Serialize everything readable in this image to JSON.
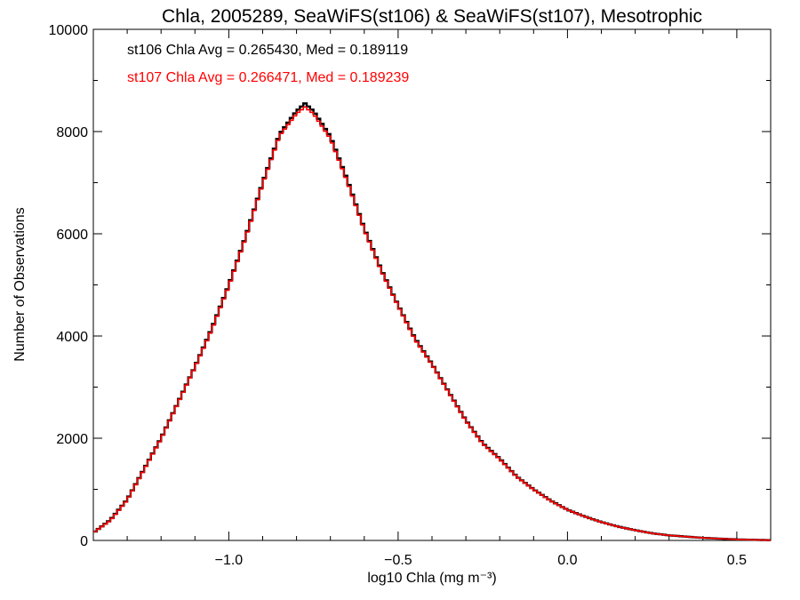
{
  "chart_data": {
    "type": "line",
    "title": "Chla, 2005289, SeaWiFS(st106) & SeaWiFS(st107), Mesotrophic",
    "xlabel": "log10 Chla (mg m⁻³)",
    "ylabel": "Number of Observations",
    "xlim": [
      -1.4,
      0.6
    ],
    "ylim": [
      0,
      10000
    ],
    "x_ticks": [
      -1.0,
      -0.5,
      0.0,
      0.5
    ],
    "x_tick_labels": [
      "−1.0",
      "−0.5",
      "0.0",
      "0.5"
    ],
    "y_ticks": [
      0,
      2000,
      4000,
      6000,
      8000,
      10000
    ],
    "y_tick_labels": [
      "0",
      "2000",
      "4000",
      "6000",
      "8000",
      "10000"
    ],
    "grid": false,
    "annotations": [
      {
        "text": "st106 Chla Avg = 0.265430, Med = 0.189119",
        "color": "#000000"
      },
      {
        "text": "st107 Chla Avg = 0.266471, Med = 0.189239",
        "color": "#ff0000"
      }
    ],
    "series": [
      {
        "color": "#000000",
        "x": [
          -1.4,
          -1.35,
          -1.3,
          -1.25,
          -1.2,
          -1.15,
          -1.1,
          -1.05,
          -1.0,
          -0.95,
          -0.9,
          -0.85,
          -0.8,
          -0.775,
          -0.75,
          -0.7,
          -0.65,
          -0.6,
          -0.55,
          -0.5,
          -0.45,
          -0.4,
          -0.35,
          -0.3,
          -0.25,
          -0.2,
          -0.15,
          -0.1,
          -0.05,
          0.0,
          0.05,
          0.1,
          0.15,
          0.2,
          0.25,
          0.3,
          0.4,
          0.5,
          0.6
        ],
        "y": [
          150,
          400,
          800,
          1400,
          2000,
          2700,
          3400,
          4150,
          5000,
          5950,
          7000,
          7950,
          8400,
          8550,
          8400,
          7900,
          7050,
          6100,
          5300,
          4600,
          3950,
          3450,
          2900,
          2350,
          1900,
          1600,
          1250,
          1000,
          780,
          600,
          470,
          360,
          270,
          200,
          140,
          100,
          50,
          20,
          5
        ]
      },
      {
        "color": "#ff0000",
        "x": [
          -1.4,
          -1.35,
          -1.3,
          -1.25,
          -1.2,
          -1.15,
          -1.1,
          -1.05,
          -1.0,
          -0.95,
          -0.9,
          -0.85,
          -0.8,
          -0.775,
          -0.75,
          -0.7,
          -0.65,
          -0.6,
          -0.55,
          -0.5,
          -0.45,
          -0.4,
          -0.35,
          -0.3,
          -0.25,
          -0.2,
          -0.15,
          -0.1,
          -0.05,
          0.0,
          0.05,
          0.1,
          0.15,
          0.2,
          0.25,
          0.3,
          0.4,
          0.5,
          0.6
        ],
        "y": [
          150,
          390,
          790,
          1390,
          1990,
          2690,
          3390,
          4130,
          4980,
          5930,
          6980,
          7920,
          8350,
          8480,
          8350,
          7860,
          7020,
          6080,
          5280,
          4590,
          3930,
          3440,
          2890,
          2340,
          1890,
          1590,
          1245,
          995,
          775,
          598,
          468,
          358,
          268,
          199,
          139,
          99,
          50,
          20,
          5
        ]
      }
    ]
  }
}
